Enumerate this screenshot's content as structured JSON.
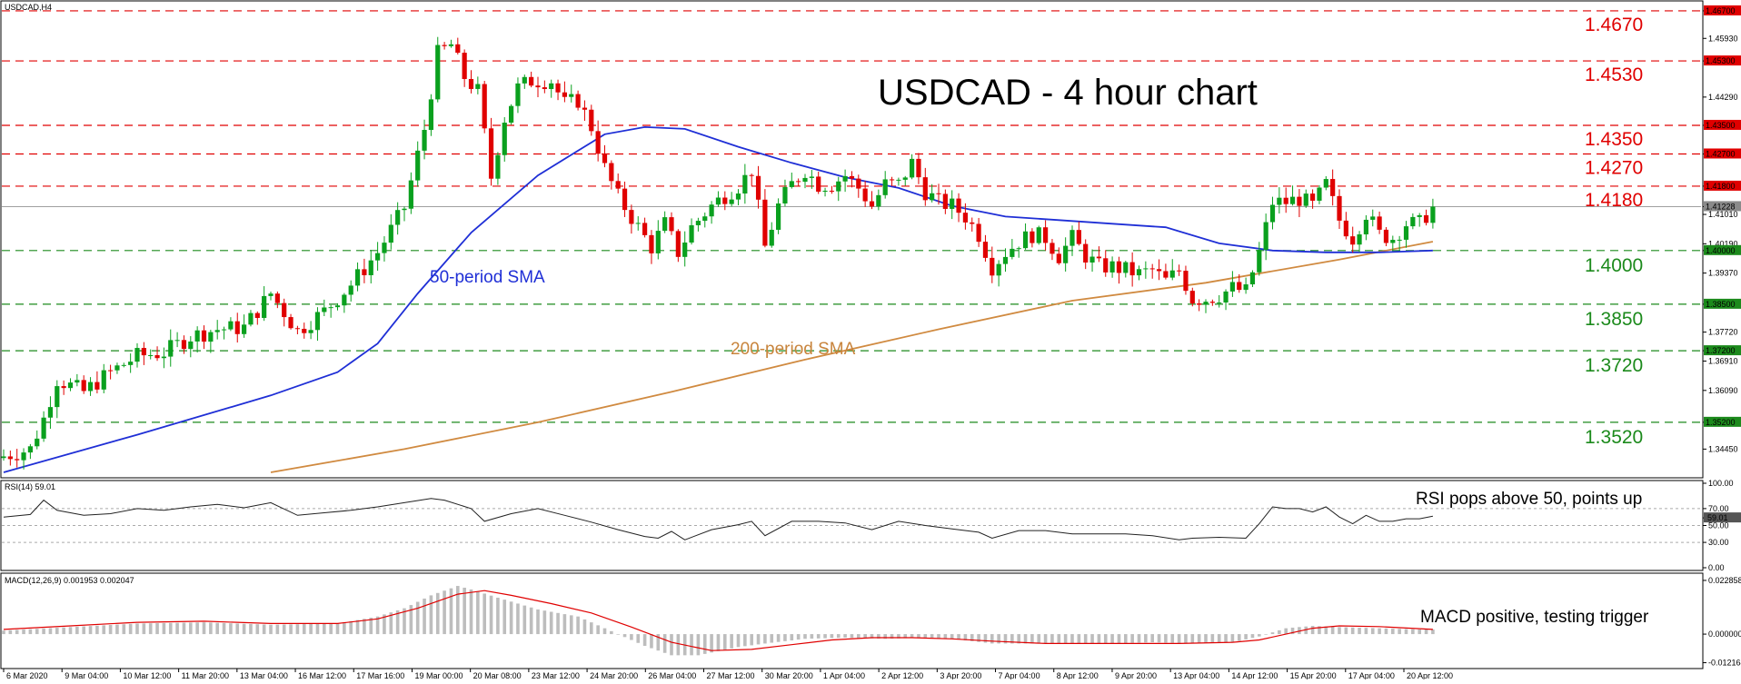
{
  "chart_data": {
    "type": "candlestick",
    "symbol_label": "USDCAD,H4",
    "title": "USDCAD - 4 hour chart",
    "price_range": [
      1.338,
      1.468
    ],
    "price_ticks": [
      "1.46700",
      "1.45930",
      "1.45300",
      "1.44290",
      "1.43500",
      "1.42700",
      "1.41800",
      "1.41228",
      "1.41010",
      "1.40190",
      "1.40000",
      "1.39370",
      "1.38500",
      "1.37720",
      "1.37200",
      "1.36910",
      "1.36090",
      "1.35200",
      "1.34450"
    ],
    "current_price": "1.41228",
    "resistance_levels": [
      {
        "label": "1.4670",
        "value": 1.467,
        "tag": "1.46700"
      },
      {
        "label": "1.4530",
        "value": 1.453,
        "tag": "1.45300"
      },
      {
        "label": "1.4350",
        "value": 1.435,
        "tag": "1.43500"
      },
      {
        "label": "1.4270",
        "value": 1.427,
        "tag": "1.42700"
      },
      {
        "label": "1.4180",
        "value": 1.418,
        "tag": "1.41800"
      }
    ],
    "support_levels": [
      {
        "label": "1.4000",
        "value": 1.4,
        "tag": "1.40000"
      },
      {
        "label": "1.3850",
        "value": 1.385,
        "tag": "1.38500"
      },
      {
        "label": "1.3720",
        "value": 1.372,
        "tag": "1.37200"
      },
      {
        "label": "1.3520",
        "value": 1.352,
        "tag": "1.35200"
      }
    ],
    "x_labels": [
      "6 Mar 2020",
      "9 Mar 04:00",
      "10 Mar 12:00",
      "11 Mar 20:00",
      "13 Mar 04:00",
      "16 Mar 12:00",
      "17 Mar 16:00",
      "19 Mar 00:00",
      "20 Mar 08:00",
      "23 Mar 12:00",
      "24 Mar 20:00",
      "26 Mar 04:00",
      "27 Mar 12:00",
      "30 Mar 20:00",
      "1 Apr 04:00",
      "2 Apr 12:00",
      "3 Apr 20:00",
      "7 Apr 04:00",
      "8 Apr 12:00",
      "9 Apr 20:00",
      "13 Apr 04:00",
      "14 Apr 12:00",
      "15 Apr 20:00",
      "17 Apr 04:00",
      "20 Apr 12:00"
    ],
    "close_path": [
      [
        0,
        1.3425
      ],
      [
        4,
        1.3445
      ],
      [
        6,
        1.353
      ],
      [
        8,
        1.364
      ],
      [
        12,
        1.3605
      ],
      [
        16,
        1.366
      ],
      [
        20,
        1.3705
      ],
      [
        24,
        1.3715
      ],
      [
        28,
        1.376
      ],
      [
        32,
        1.378
      ],
      [
        36,
        1.3785
      ],
      [
        40,
        1.388
      ],
      [
        44,
        1.3775
      ],
      [
        48,
        1.383
      ],
      [
        52,
        1.3905
      ],
      [
        56,
        1.3995
      ],
      [
        60,
        1.412
      ],
      [
        63,
        1.434
      ],
      [
        65,
        1.455
      ],
      [
        67,
        1.4575
      ],
      [
        69,
        1.4485
      ],
      [
        71,
        1.4445
      ],
      [
        73,
        1.4205
      ],
      [
        75,
        1.437
      ],
      [
        77,
        1.4455
      ],
      [
        79,
        1.4475
      ],
      [
        82,
        1.4475
      ],
      [
        84,
        1.441
      ],
      [
        86,
        1.442
      ],
      [
        88,
        1.4345
      ],
      [
        90,
        1.423
      ],
      [
        92,
        1.415
      ],
      [
        95,
        1.4065
      ],
      [
        97,
        1.401
      ],
      [
        99,
        1.4075
      ],
      [
        101,
        1.3995
      ],
      [
        103,
        1.4065
      ],
      [
        106,
        1.4125
      ],
      [
        108,
        1.4155
      ],
      [
        110,
        1.418
      ],
      [
        112,
        1.4225
      ],
      [
        114,
        1.401
      ],
      [
        116,
        1.4125
      ],
      [
        118,
        1.4185
      ],
      [
        120,
        1.4225
      ],
      [
        122,
        1.4185
      ],
      [
        124,
        1.4185
      ],
      [
        126,
        1.421
      ],
      [
        128,
        1.4175
      ],
      [
        130,
        1.4125
      ],
      [
        132,
        1.4185
      ],
      [
        134,
        1.4185
      ],
      [
        136,
        1.4245
      ],
      [
        138,
        1.4165
      ],
      [
        140,
        1.4135
      ],
      [
        142,
        1.4125
      ],
      [
        144,
        1.4095
      ],
      [
        146,
        1.4045
      ],
      [
        148,
        1.3955
      ],
      [
        150,
        1.3995
      ],
      [
        152,
        1.4025
      ],
      [
        154,
        1.4045
      ],
      [
        156,
        1.4035
      ],
      [
        158,
        1.3985
      ],
      [
        160,
        1.4035
      ],
      [
        162,
        1.3985
      ],
      [
        164,
        1.3955
      ],
      [
        166,
        1.3955
      ],
      [
        168,
        1.3945
      ],
      [
        170,
        1.3935
      ],
      [
        172,
        1.3945
      ],
      [
        174,
        1.3915
      ],
      [
        176,
        1.3945
      ],
      [
        178,
        1.3865
      ],
      [
        180,
        1.3865
      ],
      [
        182,
        1.3875
      ],
      [
        184,
        1.3895
      ],
      [
        186,
        1.3885
      ],
      [
        188,
        1.3995
      ],
      [
        190,
        1.4135
      ],
      [
        192,
        1.4135
      ],
      [
        194,
        1.4145
      ],
      [
        196,
        1.4125
      ],
      [
        198,
        1.4185
      ],
      [
        200,
        1.4085
      ],
      [
        202,
        1.4035
      ],
      [
        204,
        1.4105
      ],
      [
        206,
        1.4045
      ],
      [
        208,
        1.4035
      ],
      [
        210,
        1.4075
      ],
      [
        212,
        1.4075
      ],
      [
        214,
        1.4123
      ]
    ],
    "sma50_label": "50-period SMA",
    "sma50": [
      [
        0,
        1.338
      ],
      [
        20,
        1.3485
      ],
      [
        40,
        1.3595
      ],
      [
        50,
        1.366
      ],
      [
        56,
        1.374
      ],
      [
        62,
        1.388
      ],
      [
        70,
        1.405
      ],
      [
        80,
        1.421
      ],
      [
        90,
        1.4325
      ],
      [
        96,
        1.4345
      ],
      [
        102,
        1.434
      ],
      [
        110,
        1.429
      ],
      [
        118,
        1.4245
      ],
      [
        126,
        1.4205
      ],
      [
        134,
        1.4175
      ],
      [
        142,
        1.4125
      ],
      [
        150,
        1.4095
      ],
      [
        158,
        1.4085
      ],
      [
        166,
        1.4075
      ],
      [
        174,
        1.4065
      ],
      [
        182,
        1.402
      ],
      [
        190,
        1.4
      ],
      [
        198,
        1.3995
      ],
      [
        206,
        1.3995
      ],
      [
        214,
        1.4
      ]
    ],
    "sma200_label": "200-period SMA",
    "sma200": [
      [
        40,
        1.338
      ],
      [
        60,
        1.3445
      ],
      [
        80,
        1.352
      ],
      [
        100,
        1.3605
      ],
      [
        120,
        1.3695
      ],
      [
        140,
        1.378
      ],
      [
        160,
        1.386
      ],
      [
        180,
        1.391
      ],
      [
        200,
        1.3975
      ],
      [
        214,
        1.4025
      ]
    ],
    "rsi": {
      "label": "RSI(14) 59.01",
      "range": [
        0,
        100
      ],
      "ticks": [
        "100.00",
        "70.00",
        "59.01",
        "50.00",
        "30.00",
        "0.00"
      ],
      "levels": [
        70,
        50,
        30
      ],
      "values": [
        [
          0,
          60
        ],
        [
          4,
          63
        ],
        [
          6,
          80
        ],
        [
          8,
          68
        ],
        [
          12,
          62
        ],
        [
          16,
          64
        ],
        [
          20,
          70
        ],
        [
          24,
          68
        ],
        [
          28,
          72
        ],
        [
          32,
          75
        ],
        [
          36,
          71
        ],
        [
          40,
          77
        ],
        [
          44,
          62
        ],
        [
          48,
          65
        ],
        [
          52,
          68
        ],
        [
          56,
          72
        ],
        [
          60,
          77
        ],
        [
          64,
          82
        ],
        [
          66,
          80
        ],
        [
          70,
          70
        ],
        [
          72,
          55
        ],
        [
          76,
          64
        ],
        [
          80,
          70
        ],
        [
          84,
          62
        ],
        [
          88,
          54
        ],
        [
          92,
          45
        ],
        [
          96,
          37
        ],
        [
          98,
          35
        ],
        [
          100,
          43
        ],
        [
          102,
          33
        ],
        [
          106,
          45
        ],
        [
          110,
          51
        ],
        [
          112,
          55
        ],
        [
          114,
          38
        ],
        [
          118,
          55
        ],
        [
          122,
          55
        ],
        [
          126,
          53
        ],
        [
          130,
          45
        ],
        [
          134,
          55
        ],
        [
          138,
          50
        ],
        [
          142,
          46
        ],
        [
          146,
          42
        ],
        [
          148,
          35
        ],
        [
          152,
          44
        ],
        [
          156,
          44
        ],
        [
          160,
          40
        ],
        [
          164,
          40
        ],
        [
          168,
          40
        ],
        [
          172,
          38
        ],
        [
          176,
          33
        ],
        [
          178,
          35
        ],
        [
          182,
          36
        ],
        [
          186,
          35
        ],
        [
          188,
          52
        ],
        [
          190,
          72
        ],
        [
          192,
          70
        ],
        [
          194,
          70
        ],
        [
          196,
          66
        ],
        [
          198,
          72
        ],
        [
          200,
          60
        ],
        [
          202,
          52
        ],
        [
          204,
          62
        ],
        [
          206,
          55
        ],
        [
          208,
          55
        ],
        [
          210,
          58
        ],
        [
          212,
          58
        ],
        [
          214,
          61
        ]
      ],
      "annotation": "RSI pops above 50, points up"
    },
    "macd": {
      "label": "MACD(12,26,9) 0.001953 0.002047",
      "range": [
        -0.0135,
        0.024
      ],
      "ticks": [
        "0.022858",
        "0.000000",
        "-0.012164"
      ],
      "histogram": [
        [
          0,
          0.0015
        ],
        [
          10,
          0.003
        ],
        [
          20,
          0.0045
        ],
        [
          30,
          0.005
        ],
        [
          40,
          0.004
        ],
        [
          50,
          0.0045
        ],
        [
          56,
          0.0075
        ],
        [
          60,
          0.011
        ],
        [
          64,
          0.0165
        ],
        [
          68,
          0.0205
        ],
        [
          70,
          0.019
        ],
        [
          74,
          0.0155
        ],
        [
          80,
          0.0105
        ],
        [
          86,
          0.0075
        ],
        [
          90,
          0.0025
        ],
        [
          96,
          -0.005
        ],
        [
          100,
          -0.009
        ],
        [
          104,
          -0.009
        ],
        [
          110,
          -0.0055
        ],
        [
          114,
          -0.004
        ],
        [
          120,
          -0.002
        ],
        [
          126,
          -0.0015
        ],
        [
          132,
          -0.002
        ],
        [
          138,
          -0.0015
        ],
        [
          142,
          -0.002
        ],
        [
          148,
          -0.004
        ],
        [
          154,
          -0.004
        ],
        [
          160,
          -0.004
        ],
        [
          166,
          -0.004
        ],
        [
          172,
          -0.0035
        ],
        [
          178,
          -0.004
        ],
        [
          184,
          -0.0035
        ],
        [
          188,
          -0.001
        ],
        [
          192,
          0.0025
        ],
        [
          196,
          0.0035
        ],
        [
          200,
          0.003
        ],
        [
          206,
          0.0025
        ],
        [
          212,
          0.002
        ],
        [
          214,
          0.002
        ]
      ],
      "signal": [
        [
          0,
          0.002
        ],
        [
          10,
          0.0035
        ],
        [
          20,
          0.005
        ],
        [
          30,
          0.0055
        ],
        [
          40,
          0.0045
        ],
        [
          50,
          0.0045
        ],
        [
          56,
          0.0065
        ],
        [
          62,
          0.011
        ],
        [
          68,
          0.017
        ],
        [
          72,
          0.0185
        ],
        [
          76,
          0.0165
        ],
        [
          82,
          0.013
        ],
        [
          88,
          0.009
        ],
        [
          94,
          0.003
        ],
        [
          100,
          -0.0035
        ],
        [
          106,
          -0.007
        ],
        [
          112,
          -0.0065
        ],
        [
          118,
          -0.0045
        ],
        [
          124,
          -0.0025
        ],
        [
          130,
          -0.0015
        ],
        [
          136,
          -0.0015
        ],
        [
          142,
          -0.002
        ],
        [
          148,
          -0.003
        ],
        [
          156,
          -0.004
        ],
        [
          166,
          -0.004
        ],
        [
          176,
          -0.004
        ],
        [
          184,
          -0.0035
        ],
        [
          188,
          -0.0025
        ],
        [
          192,
          0.0
        ],
        [
          196,
          0.0025
        ],
        [
          200,
          0.0035
        ],
        [
          206,
          0.0032
        ],
        [
          214,
          0.002
        ]
      ],
      "annotation": "MACD positive, testing trigger"
    },
    "colors": {
      "bull": "#0aa01e",
      "bear": "#e00000",
      "resistance": "#e00000",
      "support": "#1c8a1c",
      "sma50": "#1f2fd6",
      "sma200": "#d08a40",
      "macd_hist": "#bdbdbd",
      "macd_signal": "#e00000",
      "price_line": "#a0a0a0"
    }
  }
}
